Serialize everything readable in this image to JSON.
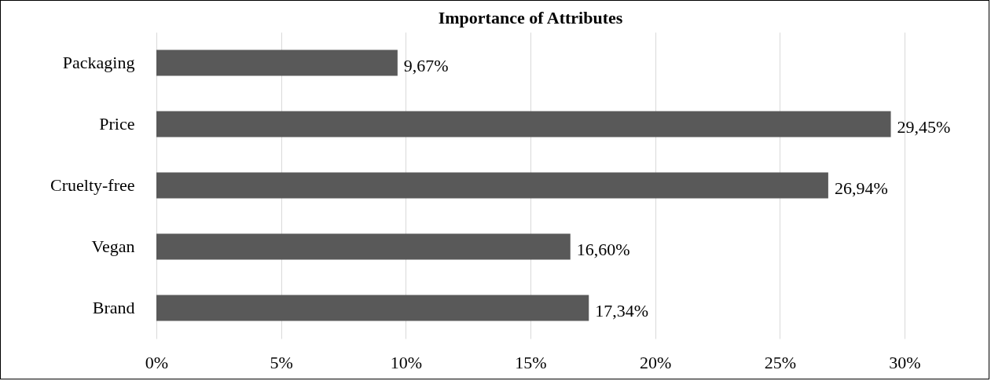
{
  "chart_data": {
    "type": "bar",
    "orientation": "horizontal",
    "title": "Importance of Attributes",
    "categories": [
      "Packaging",
      "Price",
      "Cruelty-free",
      "Vegan",
      "Brand"
    ],
    "values": [
      9.67,
      29.45,
      26.94,
      16.6,
      17.34
    ],
    "value_labels": [
      "9,67%",
      "29,45%",
      "26,94%",
      "16,60%",
      "17,34%"
    ],
    "color": "#595959",
    "xlim": [
      0,
      30
    ],
    "xticks": [
      {
        "value": 0,
        "label": "0%"
      },
      {
        "value": 5,
        "label": "5%"
      },
      {
        "value": 10,
        "label": "10%"
      },
      {
        "value": 15,
        "label": "15%"
      },
      {
        "value": 20,
        "label": "20%"
      },
      {
        "value": 25,
        "label": "25%"
      },
      {
        "value": 30,
        "label": "30%"
      }
    ],
    "grid": "x"
  }
}
